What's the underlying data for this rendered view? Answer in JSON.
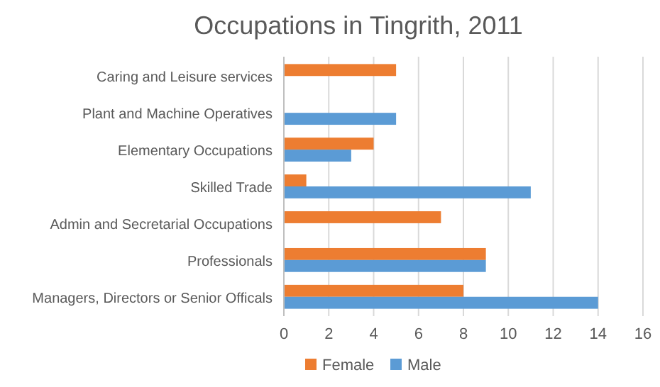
{
  "chart_data": {
    "type": "bar",
    "orientation": "horizontal",
    "title": "Occupations in Tingrith, 2011",
    "categories": [
      "Caring and Leisure services",
      "Plant and Machine Operatives",
      "Elementary Occupations",
      "Skilled Trade",
      "Admin and Secretarial Occupations",
      "Professionals",
      "Managers, Directors or Senior Officals"
    ],
    "series": [
      {
        "name": "Female",
        "color": "#ed7d31",
        "values": [
          5,
          0,
          4,
          1,
          7,
          9,
          8
        ]
      },
      {
        "name": "Male",
        "color": "#5b9bd5",
        "values": [
          0,
          5,
          3,
          11,
          0,
          9,
          14
        ]
      }
    ],
    "xlim": [
      0,
      16
    ],
    "xticks": [
      0,
      2,
      4,
      6,
      8,
      10,
      12,
      14,
      16
    ],
    "grid": "x",
    "legend": "bottom"
  }
}
